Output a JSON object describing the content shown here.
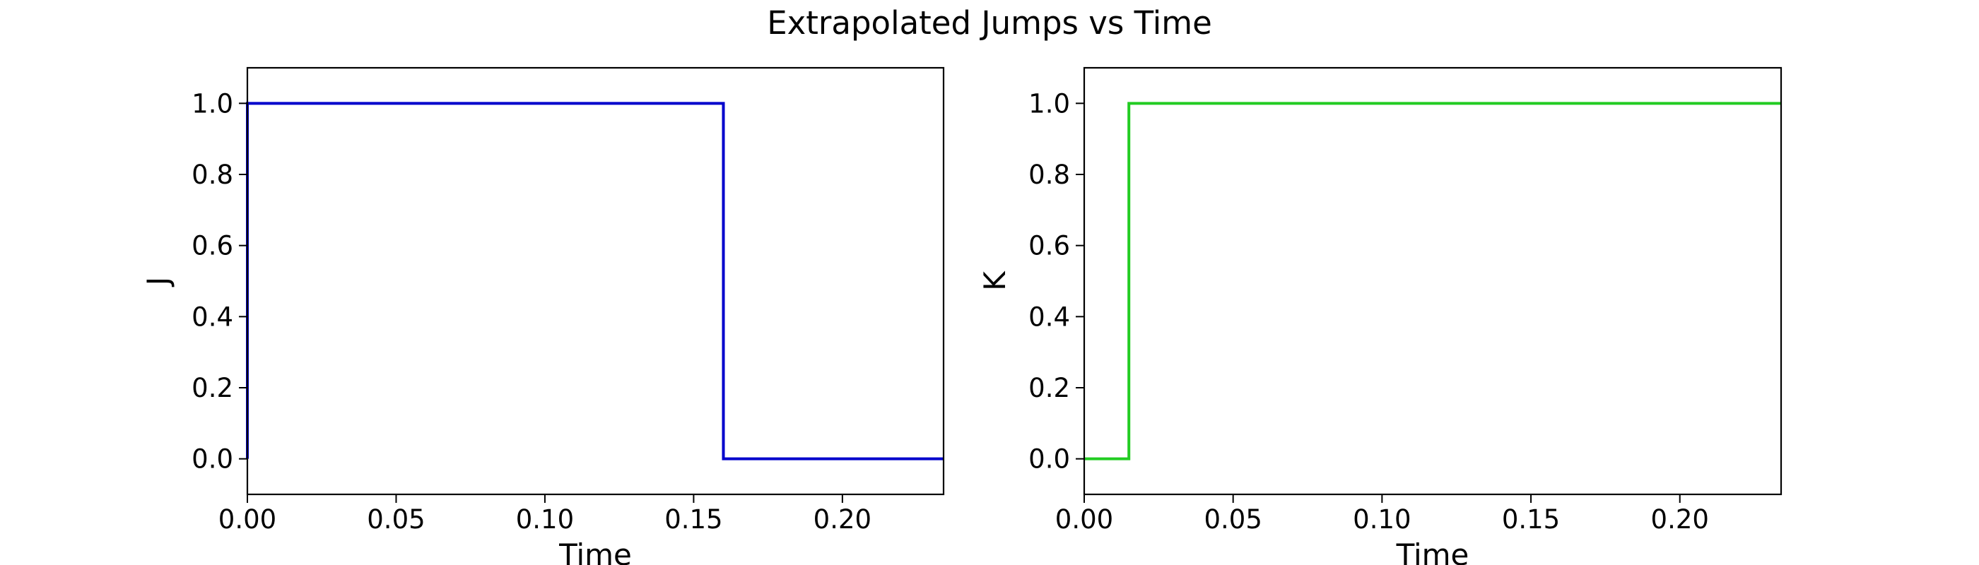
{
  "chart_data": {
    "title": "Extrapolated Jumps vs Time",
    "panels": [
      {
        "type": "line",
        "drawstyle": "step",
        "xlabel": "Time",
        "ylabel": "J",
        "xlim": [
          0.0,
          0.234
        ],
        "ylim": [
          -0.1,
          1.1
        ],
        "xticks": [
          0.0,
          0.05,
          0.1,
          0.15,
          0.2
        ],
        "xtick_labels": [
          "0.00",
          "0.05",
          "0.10",
          "0.15",
          "0.20"
        ],
        "yticks": [
          0.0,
          0.2,
          0.4,
          0.6,
          0.8,
          1.0
        ],
        "ytick_labels": [
          "0.0",
          "0.2",
          "0.4",
          "0.6",
          "0.8",
          "1.0"
        ],
        "grid": false,
        "series": [
          {
            "color": "#0000cc",
            "x": [
              0.0,
              0.0,
              0.16,
              0.16,
              0.234
            ],
            "y": [
              0,
              1,
              1,
              0,
              0
            ]
          }
        ]
      },
      {
        "type": "line",
        "drawstyle": "step",
        "xlabel": "Time",
        "ylabel": "K",
        "xlim": [
          0.0,
          0.234
        ],
        "ylim": [
          -0.1,
          1.1
        ],
        "xticks": [
          0.0,
          0.05,
          0.1,
          0.15,
          0.2
        ],
        "xtick_labels": [
          "0.00",
          "0.05",
          "0.10",
          "0.15",
          "0.20"
        ],
        "yticks": [
          0.0,
          0.2,
          0.4,
          0.6,
          0.8,
          1.0
        ],
        "ytick_labels": [
          "0.0",
          "0.2",
          "0.4",
          "0.6",
          "0.8",
          "1.0"
        ],
        "grid": false,
        "series": [
          {
            "color": "#22cc22",
            "x": [
              0.0,
              0.015,
              0.015,
              0.234
            ],
            "y": [
              0,
              0,
              1,
              1
            ]
          }
        ]
      }
    ]
  }
}
